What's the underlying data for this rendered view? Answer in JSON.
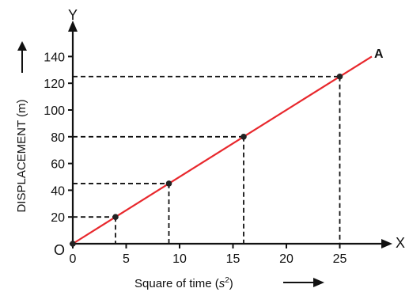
{
  "chart_data": {
    "type": "line",
    "xlabel_prefix": "Square of time (",
    "xlabel_unit_base": "s",
    "xlabel_unit_exp": "2",
    "xlabel_suffix": ")",
    "ylabel": "DISPLACEMENT (m)",
    "x_axis_letter": "X",
    "y_axis_letter": "Y",
    "origin_label": "O",
    "line_end_label": "A",
    "x_ticks": [
      0,
      5,
      10,
      15,
      20,
      25
    ],
    "y_ticks": [
      20,
      40,
      60,
      80,
      100,
      120,
      140
    ],
    "xlim": [
      0,
      28
    ],
    "ylim": [
      0,
      150
    ],
    "grid": false,
    "colors": {
      "line": "#e8282d",
      "points": "#222222",
      "axes": "#111111"
    },
    "series": [
      {
        "x": [
          0,
          4,
          9,
          16,
          25
        ],
        "y": [
          0,
          20,
          45,
          80,
          125
        ]
      }
    ],
    "line_extends_to": {
      "x": 28,
      "y": 140
    }
  }
}
